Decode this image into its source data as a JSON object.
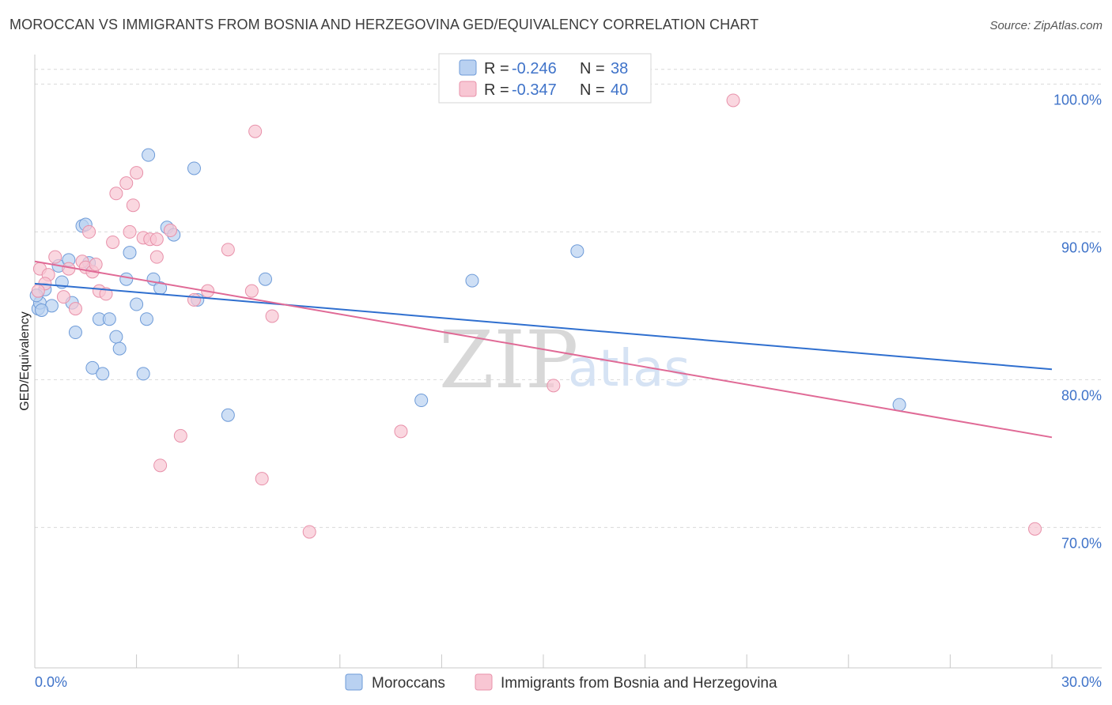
{
  "header": {
    "title": "MOROCCAN VS IMMIGRANTS FROM BOSNIA AND HERZEGOVINA GED/EQUIVALENCY CORRELATION CHART",
    "source": "Source: ZipAtlas.com"
  },
  "watermark": {
    "zip": "ZIP",
    "atlas": "atlas"
  },
  "legend": {
    "rows": [
      {
        "r_label": "R =",
        "r_value": "-0.246",
        "n_label": "N =",
        "n_value": "38"
      },
      {
        "r_label": "R =",
        "r_value": "-0.347",
        "n_label": "N =",
        "n_value": "40"
      }
    ]
  },
  "colors": {
    "blue_fill": "#b9d1f1",
    "blue_stroke": "#6e9bd8",
    "blue_line": "#2f6fcf",
    "pink_fill": "#f8c6d3",
    "pink_stroke": "#e891aa",
    "pink_line": "#e06a96",
    "grid": "#d9d9d9",
    "axis_label": "#3f73c9"
  },
  "chart_data": {
    "type": "scatter",
    "title": "MOROCCAN VS IMMIGRANTS FROM BOSNIA AND HERZEGOVINA GED/EQUIVALENCY CORRELATION CHART",
    "xlabel": "",
    "ylabel": "GED/Equivalency",
    "xlim": [
      0,
      30
    ],
    "ylim": [
      60.5,
      102
    ],
    "x_tick_labels": [
      "0.0%",
      "30.0%"
    ],
    "y_ticks": [
      100,
      90,
      80,
      70
    ],
    "y_tick_labels": [
      "100.0%",
      "90.0%",
      "80.0%",
      "70.0%"
    ],
    "grid": true,
    "series": [
      {
        "name": "Moroccans",
        "color": "#6e9bd8",
        "r": -0.246,
        "n": 38,
        "trend": {
          "x": [
            0,
            30
          ],
          "y": [
            86.5,
            80.7
          ]
        },
        "points": [
          [
            0.1,
            84.8
          ],
          [
            0.15,
            85.2
          ],
          [
            0.3,
            86.1
          ],
          [
            0.5,
            85.0
          ],
          [
            0.7,
            87.7
          ],
          [
            0.8,
            86.6
          ],
          [
            1.0,
            88.1
          ],
          [
            1.1,
            85.2
          ],
          [
            1.2,
            83.2
          ],
          [
            1.4,
            90.4
          ],
          [
            1.5,
            90.5
          ],
          [
            1.6,
            87.9
          ],
          [
            1.7,
            80.8
          ],
          [
            1.9,
            84.1
          ],
          [
            2.0,
            80.4
          ],
          [
            2.2,
            84.1
          ],
          [
            2.4,
            82.9
          ],
          [
            2.5,
            82.1
          ],
          [
            2.7,
            86.8
          ],
          [
            2.8,
            88.6
          ],
          [
            3.0,
            85.1
          ],
          [
            3.2,
            80.4
          ],
          [
            3.3,
            84.1
          ],
          [
            3.35,
            95.2
          ],
          [
            3.5,
            86.8
          ],
          [
            3.7,
            86.2
          ],
          [
            3.9,
            90.3
          ],
          [
            4.1,
            89.8
          ],
          [
            4.7,
            94.3
          ],
          [
            4.8,
            85.4
          ],
          [
            5.7,
            77.6
          ],
          [
            6.8,
            86.8
          ],
          [
            11.4,
            78.6
          ],
          [
            12.9,
            86.7
          ],
          [
            16.0,
            88.7
          ],
          [
            25.5,
            78.3
          ],
          [
            0.05,
            85.7
          ],
          [
            0.2,
            84.7
          ]
        ]
      },
      {
        "name": "Immigrants from Bosnia and Herzegovina",
        "color": "#e891aa",
        "r": -0.347,
        "n": 40,
        "trend": {
          "x": [
            0,
            30
          ],
          "y": [
            88.0,
            76.1
          ]
        },
        "points": [
          [
            0.15,
            87.5
          ],
          [
            0.4,
            87.1
          ],
          [
            0.6,
            88.3
          ],
          [
            0.85,
            85.6
          ],
          [
            1.0,
            87.5
          ],
          [
            1.2,
            84.8
          ],
          [
            1.4,
            88.0
          ],
          [
            1.5,
            87.6
          ],
          [
            1.6,
            90.0
          ],
          [
            1.7,
            87.3
          ],
          [
            1.9,
            86.0
          ],
          [
            2.1,
            85.8
          ],
          [
            2.3,
            89.3
          ],
          [
            2.4,
            92.6
          ],
          [
            2.7,
            93.3
          ],
          [
            2.9,
            91.8
          ],
          [
            3.0,
            94.0
          ],
          [
            3.2,
            89.6
          ],
          [
            3.4,
            89.5
          ],
          [
            3.6,
            88.3
          ],
          [
            3.6,
            89.5
          ],
          [
            3.7,
            74.2
          ],
          [
            4.0,
            90.1
          ],
          [
            4.3,
            76.2
          ],
          [
            4.7,
            85.4
          ],
          [
            5.1,
            86.0
          ],
          [
            5.7,
            88.8
          ],
          [
            6.4,
            86.0
          ],
          [
            6.5,
            96.8
          ],
          [
            6.7,
            73.3
          ],
          [
            7.0,
            84.3
          ],
          [
            8.1,
            69.7
          ],
          [
            10.8,
            76.5
          ],
          [
            15.3,
            79.6
          ],
          [
            20.6,
            98.9
          ],
          [
            29.5,
            69.9
          ],
          [
            0.3,
            86.5
          ],
          [
            1.8,
            87.8
          ],
          [
            2.8,
            90.0
          ],
          [
            0.1,
            86.0
          ]
        ]
      }
    ]
  }
}
